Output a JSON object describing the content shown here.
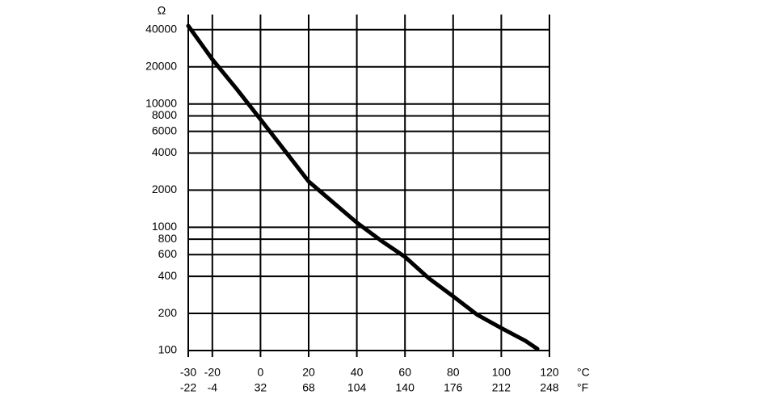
{
  "chart_data": {
    "type": "line",
    "y_label": "Ω",
    "x_unit": "°C",
    "x2_unit": "°F",
    "log_y": true,
    "grid": true,
    "color": "#000000",
    "xlim": [
      -30,
      120
    ],
    "xticks": [
      -30,
      -20,
      0,
      20,
      40,
      60,
      80,
      100,
      120
    ],
    "x2lim": [
      -22,
      248
    ],
    "x2ticks": [
      -22,
      -4,
      32,
      68,
      104,
      140,
      176,
      212,
      248
    ],
    "ylim": [
      100,
      50000
    ],
    "yticks": [
      100,
      200,
      400,
      600,
      800,
      1000,
      2000,
      4000,
      6000,
      8000,
      10000,
      20000,
      40000
    ],
    "x": [
      -30,
      -20,
      -10,
      0,
      10,
      20,
      30,
      40,
      50,
      60,
      70,
      80,
      90,
      100,
      110,
      115
    ],
    "values": [
      43000,
      23000,
      13300,
      7500,
      4200,
      2350,
      1600,
      1090,
      780,
      575,
      384,
      275,
      195,
      152,
      120,
      103
    ]
  }
}
